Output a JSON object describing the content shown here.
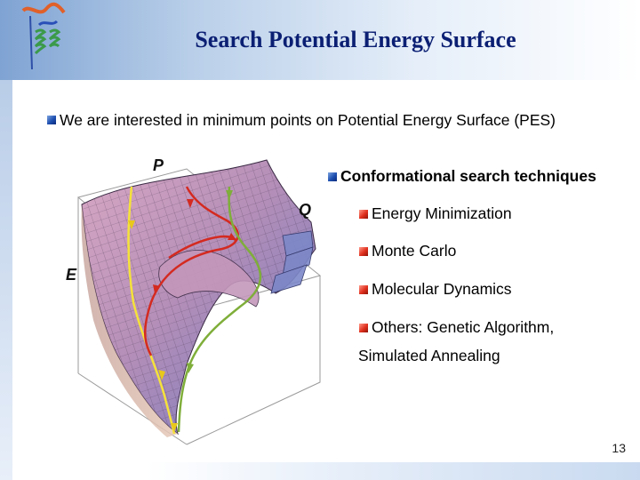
{
  "slide": {
    "title": "Search Potential Energy Surface",
    "intro_bullet": "We are interested in minimum points on Potential Energy Surface (PES)",
    "section_heading": "Conformational search techniques",
    "techniques": [
      "Energy Minimization",
      "Monte Carlo",
      "Molecular Dynamics",
      "Others: Genetic Algorithm,"
    ],
    "techniques_continuation": "Simulated Annealing",
    "page_number": "13"
  },
  "figure": {
    "labels": {
      "p": "P",
      "q": "Q",
      "e": "E"
    },
    "path_colors": {
      "yellow": "#f5e23a",
      "red": "#d42a20",
      "green": "#7fae3a"
    },
    "surface_color": "#b58fb8"
  },
  "colors": {
    "title": "#0b1f73",
    "header_gradient_start": "#7fa3d3",
    "bullet_blue": "#1e4fb0",
    "bullet_red": "#e0301e"
  }
}
